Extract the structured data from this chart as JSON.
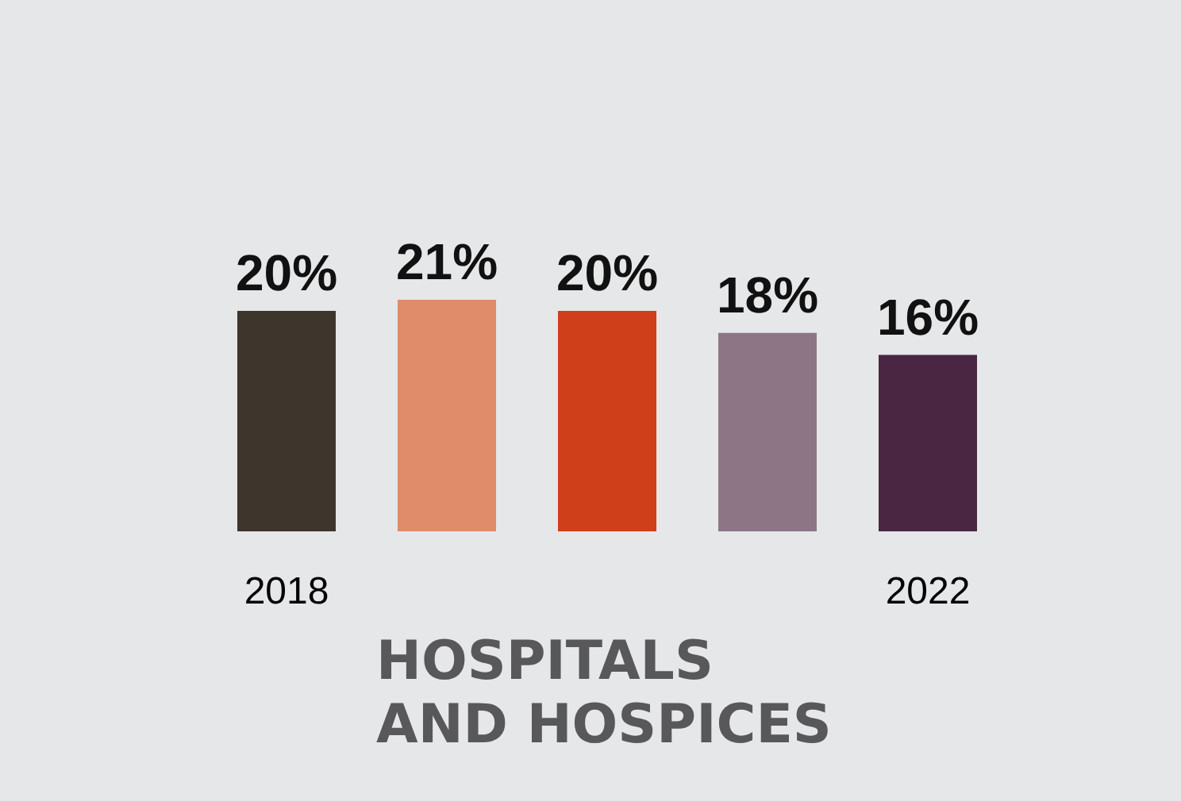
{
  "chart_data": {
    "type": "bar",
    "title": "HOSPITALS AND HOSPICES",
    "categories": [
      "2018",
      null,
      null,
      null,
      "2022"
    ],
    "values": [
      20,
      21,
      20,
      18,
      16
    ],
    "value_labels": [
      "20%",
      "21%",
      "20%",
      "18%",
      "16%"
    ],
    "colors": [
      "#3e352d",
      "#e08b6a",
      "#cf3f1a",
      "#8e7585",
      "#4a2642"
    ]
  }
}
